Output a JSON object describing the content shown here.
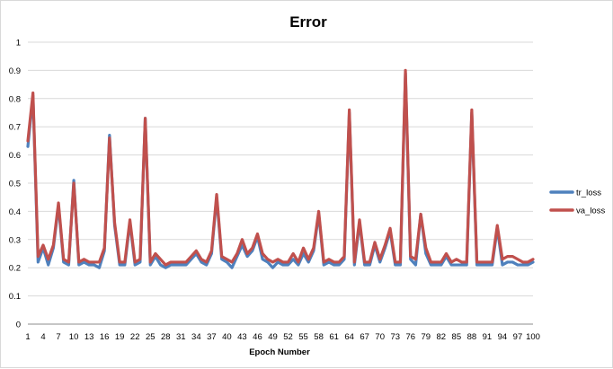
{
  "chart_data": {
    "type": "line",
    "title": "Error",
    "xlabel": "Epoch Number",
    "ylabel": "",
    "ylim": [
      0,
      1
    ],
    "yticks": [
      "0",
      "0.1",
      "0.2",
      "0.3",
      "0.4",
      "0.5",
      "0.6",
      "0.7",
      "0.8",
      "0.9",
      "1"
    ],
    "xtick_labels": [
      1,
      4,
      7,
      10,
      13,
      16,
      19,
      22,
      25,
      28,
      31,
      34,
      37,
      40,
      43,
      46,
      49,
      52,
      55,
      58,
      61,
      64,
      67,
      70,
      73,
      76,
      79,
      82,
      85,
      88,
      91,
      94,
      97,
      100
    ],
    "grid": true,
    "legend_position": "right",
    "x": [
      1,
      2,
      3,
      4,
      5,
      6,
      7,
      8,
      9,
      10,
      11,
      12,
      13,
      14,
      15,
      16,
      17,
      18,
      19,
      20,
      21,
      22,
      23,
      24,
      25,
      26,
      27,
      28,
      29,
      30,
      31,
      32,
      33,
      34,
      35,
      36,
      37,
      38,
      39,
      40,
      41,
      42,
      43,
      44,
      45,
      46,
      47,
      48,
      49,
      50,
      51,
      52,
      53,
      54,
      55,
      56,
      57,
      58,
      59,
      60,
      61,
      62,
      63,
      64,
      65,
      66,
      67,
      68,
      69,
      70,
      71,
      72,
      73,
      74,
      75,
      76,
      77,
      78,
      79,
      80,
      81,
      82,
      83,
      84,
      85,
      86,
      87,
      88,
      89,
      90,
      91,
      92,
      93,
      94,
      95,
      96,
      97,
      98,
      99,
      100
    ],
    "series": [
      {
        "name": "tr_loss",
        "color": "#4f81bd",
        "values": [
          0.63,
          0.81,
          0.22,
          0.27,
          0.21,
          0.27,
          0.42,
          0.22,
          0.21,
          0.51,
          0.21,
          0.22,
          0.21,
          0.21,
          0.2,
          0.26,
          0.67,
          0.35,
          0.21,
          0.21,
          0.36,
          0.21,
          0.22,
          0.73,
          0.21,
          0.24,
          0.21,
          0.2,
          0.21,
          0.21,
          0.21,
          0.21,
          0.23,
          0.25,
          0.22,
          0.21,
          0.25,
          0.45,
          0.23,
          0.22,
          0.2,
          0.24,
          0.28,
          0.24,
          0.26,
          0.31,
          0.23,
          0.22,
          0.2,
          0.22,
          0.21,
          0.21,
          0.23,
          0.21,
          0.25,
          0.22,
          0.26,
          0.39,
          0.21,
          0.22,
          0.21,
          0.21,
          0.23,
          0.75,
          0.21,
          0.36,
          0.21,
          0.21,
          0.28,
          0.22,
          0.27,
          0.33,
          0.21,
          0.21,
          0.89,
          0.23,
          0.21,
          0.39,
          0.25,
          0.21,
          0.21,
          0.21,
          0.24,
          0.21,
          0.21,
          0.21,
          0.21,
          0.75,
          0.21,
          0.21,
          0.21,
          0.21,
          0.34,
          0.21,
          0.22,
          0.22,
          0.21,
          0.21,
          0.21,
          0.22
        ]
      },
      {
        "name": "va_loss",
        "color": "#c0504d",
        "values": [
          0.65,
          0.82,
          0.24,
          0.28,
          0.23,
          0.28,
          0.43,
          0.23,
          0.22,
          0.5,
          0.22,
          0.23,
          0.22,
          0.22,
          0.22,
          0.27,
          0.66,
          0.36,
          0.22,
          0.22,
          0.37,
          0.22,
          0.23,
          0.73,
          0.22,
          0.25,
          0.23,
          0.21,
          0.22,
          0.22,
          0.22,
          0.22,
          0.24,
          0.26,
          0.23,
          0.22,
          0.26,
          0.46,
          0.24,
          0.23,
          0.22,
          0.25,
          0.3,
          0.25,
          0.27,
          0.32,
          0.25,
          0.23,
          0.22,
          0.23,
          0.22,
          0.22,
          0.25,
          0.22,
          0.27,
          0.23,
          0.27,
          0.4,
          0.22,
          0.23,
          0.22,
          0.22,
          0.24,
          0.76,
          0.22,
          0.37,
          0.22,
          0.22,
          0.29,
          0.23,
          0.28,
          0.34,
          0.22,
          0.22,
          0.9,
          0.24,
          0.23,
          0.39,
          0.27,
          0.22,
          0.22,
          0.22,
          0.25,
          0.22,
          0.23,
          0.22,
          0.22,
          0.76,
          0.22,
          0.22,
          0.22,
          0.22,
          0.35,
          0.23,
          0.24,
          0.24,
          0.23,
          0.22,
          0.22,
          0.23
        ]
      }
    ]
  }
}
